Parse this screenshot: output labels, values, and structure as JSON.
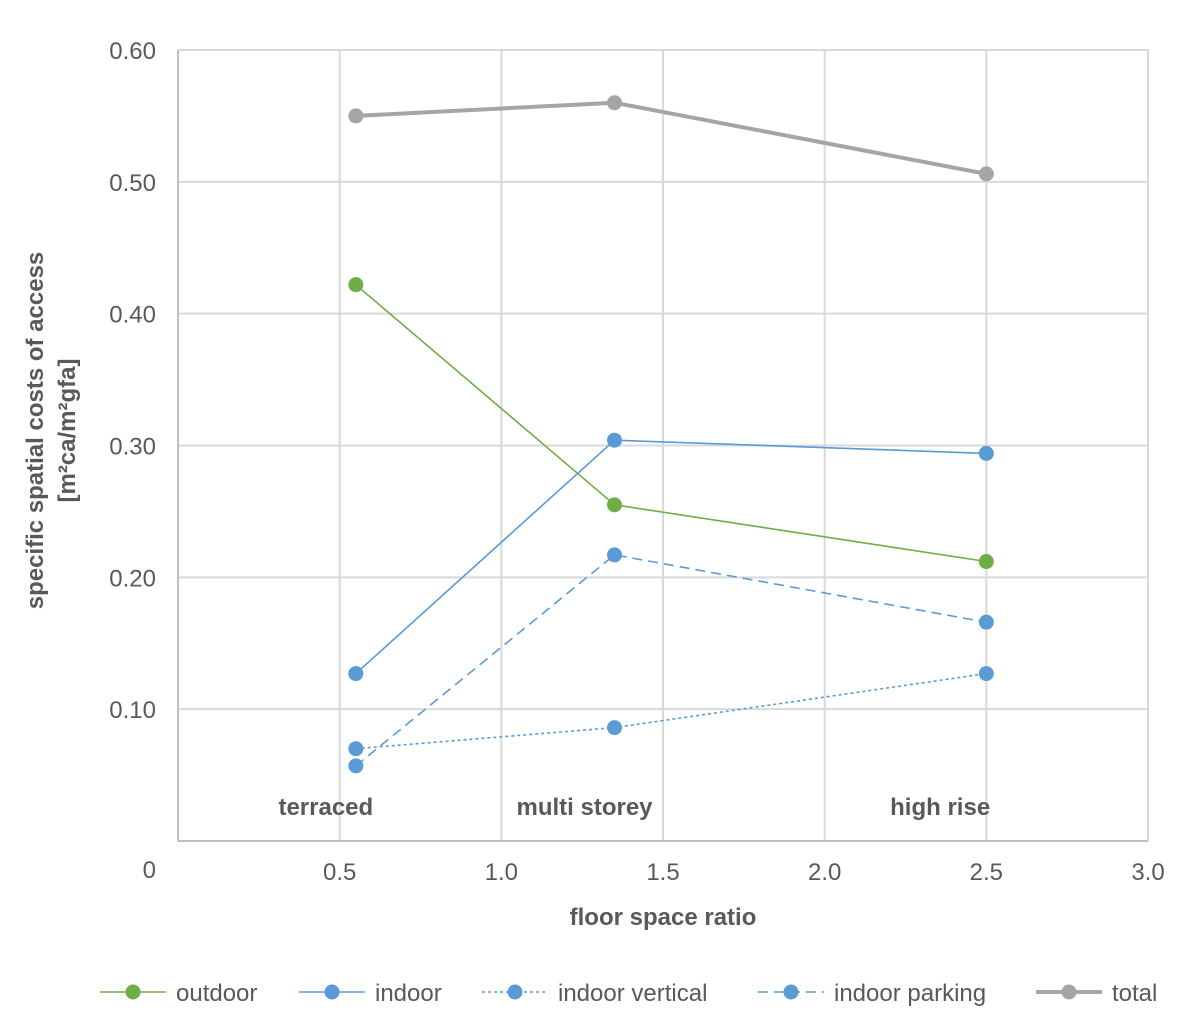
{
  "chart_data": {
    "type": "line",
    "xlabel": "floor space ratio",
    "ylabel_lines": [
      "specific spatial costs of access",
      "[m²ca/m²gfa]"
    ],
    "xlim": [
      0,
      3.0
    ],
    "ylim": [
      0,
      0.6
    ],
    "x_ticks": [
      0.5,
      1.0,
      1.5,
      2.0,
      2.5,
      3.0
    ],
    "x_tick_labels": [
      "0.5",
      "1.0",
      "1.5",
      "2.0",
      "2.5",
      "3.0"
    ],
    "origin_label": "0",
    "y_ticks": [
      0.1,
      0.2,
      0.3,
      0.4,
      0.5,
      0.6
    ],
    "y_tick_labels": [
      "0.10",
      "0.20",
      "0.30",
      "0.40",
      "0.50",
      "0.60"
    ],
    "grid": true,
    "category_labels": [
      {
        "x": 0.55,
        "label": "terraced"
      },
      {
        "x": 1.35,
        "label": "multi storey"
      },
      {
        "x": 2.45,
        "label": "high rise"
      }
    ],
    "series": [
      {
        "name": "outdoor",
        "color": "#70ad47",
        "style": "solid",
        "x": [
          0.55,
          1.35,
          2.5
        ],
        "values": [
          0.422,
          0.255,
          0.212
        ]
      },
      {
        "name": "indoor",
        "color": "#5b9bd5",
        "style": "solid",
        "x": [
          0.55,
          1.35,
          2.5
        ],
        "values": [
          0.127,
          0.304,
          0.294
        ]
      },
      {
        "name": "indoor vertical",
        "color": "#5b9bd5",
        "style": "dotted",
        "x": [
          0.55,
          1.35,
          2.5
        ],
        "values": [
          0.07,
          0.086,
          0.127
        ]
      },
      {
        "name": "indoor parking",
        "color": "#5b9bd5",
        "style": "dashed",
        "x": [
          0.55,
          1.35,
          2.5
        ],
        "values": [
          0.057,
          0.217,
          0.166
        ]
      },
      {
        "name": "total",
        "color": "#a5a5a5",
        "style": "thick",
        "x": [
          0.55,
          1.35,
          2.5
        ],
        "values": [
          0.55,
          0.56,
          0.506
        ]
      }
    ],
    "legend_position": "bottom"
  }
}
